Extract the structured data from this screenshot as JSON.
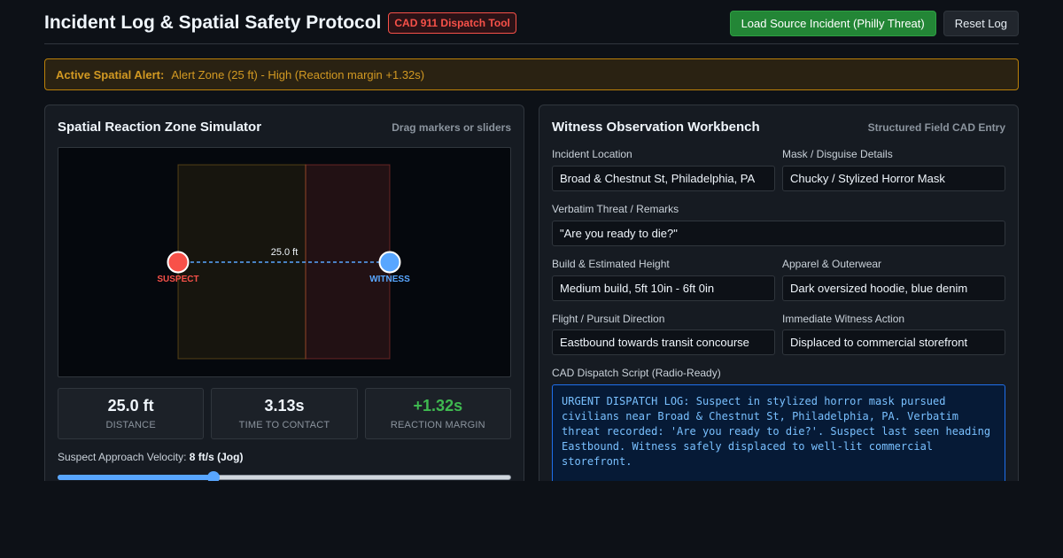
{
  "header": {
    "title": "Incident Log & Spatial Safety Protocol",
    "badge": "CAD 911 Dispatch Tool",
    "load_button": "Load Source Incident (Philly Threat)",
    "reset_button": "Reset Log"
  },
  "alert": {
    "label": "Active Spatial Alert:",
    "text": "Alert Zone (25 ft) - High (Reaction margin +1.32s)"
  },
  "simulator": {
    "title": "Spatial Reaction Zone Simulator",
    "hint": "Drag markers or sliders",
    "distance_label": "25.0 ft",
    "suspect_label": "SUSPECT",
    "witness_label": "WITNESS",
    "colors": {
      "suspect": "#f85149",
      "witness": "#58a6ff",
      "alert_zone": "#d29922",
      "danger_zone": "#f85149"
    },
    "stats": [
      {
        "value": "25.0 ft",
        "label": "DISTANCE"
      },
      {
        "value": "3.13s",
        "label": "TIME TO CONTACT"
      },
      {
        "value": "+1.32s",
        "label": "REACTION MARGIN"
      }
    ],
    "velocity_label": "Suspect Approach Velocity:",
    "velocity_value": "8 ft/s (Jog)",
    "velocity_fraction": 0.34
  },
  "workbench": {
    "title": "Witness Observation Workbench",
    "hint": "Structured Field CAD Entry",
    "fields": {
      "location": {
        "label": "Incident Location",
        "value": "Broad & Chestnut St, Philadelphia, PA"
      },
      "mask": {
        "label": "Mask / Disguise Details",
        "value": "Chucky / Stylized Horror Mask"
      },
      "threat": {
        "label": "Verbatim Threat / Remarks",
        "value": "\"Are you ready to die?\""
      },
      "build": {
        "label": "Build & Estimated Height",
        "value": "Medium build, 5ft 10in - 6ft 0in"
      },
      "apparel": {
        "label": "Apparel & Outerwear",
        "value": "Dark oversized hoodie, blue denim"
      },
      "flight": {
        "label": "Flight / Pursuit Direction",
        "value": "Eastbound towards transit concourse"
      },
      "action": {
        "label": "Immediate Witness Action",
        "value": "Displaced to commercial storefront"
      }
    },
    "script_label": "CAD Dispatch Script (Radio-Ready)",
    "script_text": "URGENT DISPATCH LOG: Suspect in stylized horror mask pursued civilians near Broad & Chestnut St, Philadelphia, PA. Verbatim threat recorded: 'Are you ready to die?'. Suspect last seen heading Eastbound. Witness safely displaced to well-lit commercial storefront."
  }
}
